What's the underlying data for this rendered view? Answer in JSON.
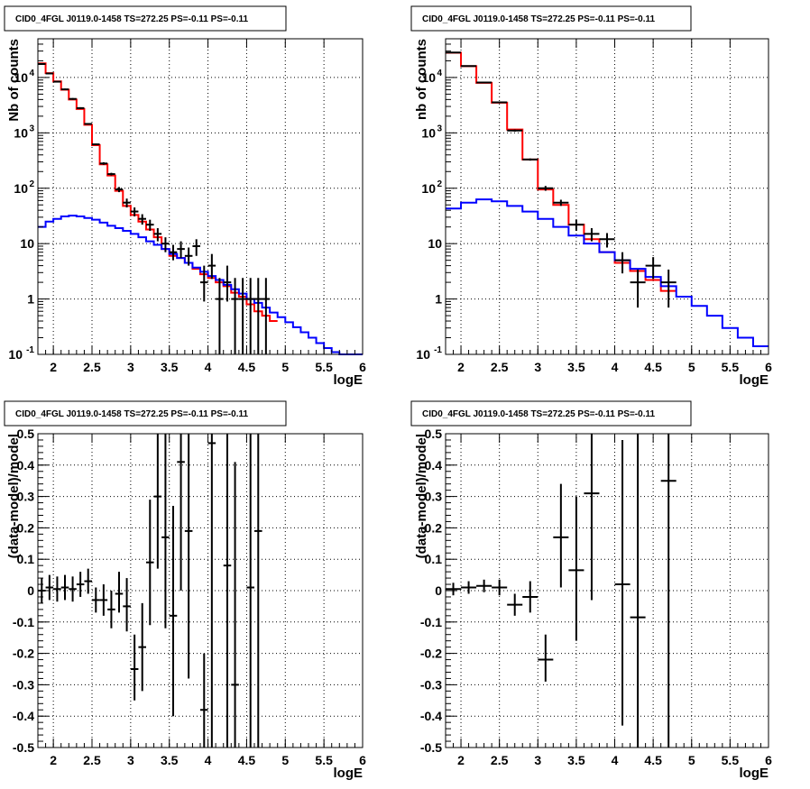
{
  "chart_data": [
    {
      "type": "histogram-log",
      "title": "CID0_4FGL J0119.0-1458 TS=272.25 PS=-0.11 PS=-0.11",
      "xlabel": "logE",
      "ylabel": "Nb of counts",
      "xlim": [
        1.8,
        6.0
      ],
      "ylim": [
        0.1,
        50000
      ],
      "yscale": "log",
      "grid": true,
      "x_ticks": [
        2,
        2.5,
        3,
        3.5,
        4,
        4.5,
        5,
        5.5,
        6
      ],
      "x_tick_labels": [
        "2",
        "2.5",
        "3",
        "3.5",
        "4",
        "4.5",
        "5",
        "5.5",
        "6"
      ],
      "y_ticks": [
        0.1,
        1,
        10,
        100,
        1000,
        10000
      ],
      "y_tick_labels": [
        [
          "10",
          "-1"
        ],
        [
          "1",
          ""
        ],
        [
          "10",
          ""
        ],
        [
          "10",
          "2"
        ],
        [
          "10",
          "3"
        ],
        [
          "10",
          "4"
        ]
      ],
      "series": [
        {
          "color": "#ff0000",
          "style": "step",
          "bin_width": 0.1,
          "x": [
            1.8,
            1.9,
            2.0,
            2.1,
            2.2,
            2.3,
            2.4,
            2.5,
            2.6,
            2.7,
            2.8,
            2.9,
            3.0,
            3.1,
            3.2,
            3.3,
            3.4,
            3.5,
            3.6,
            3.7,
            3.8,
            3.9,
            4.0,
            4.1,
            4.2,
            4.3,
            4.4,
            4.5,
            4.6,
            4.7,
            4.8
          ],
          "values": [
            18000,
            12000,
            8500,
            6000,
            4000,
            2700,
            1400,
            600,
            270,
            170,
            90,
            48,
            33,
            25,
            18,
            13,
            8,
            6,
            5.5,
            4.5,
            3.5,
            2.8,
            2.4,
            2.0,
            1.7,
            1.3,
            1.1,
            0.8,
            0.6,
            0.5,
            0.4
          ]
        },
        {
          "color": "#0000ff",
          "style": "step",
          "bin_width": 0.1,
          "x": [
            1.8,
            1.9,
            2.0,
            2.1,
            2.2,
            2.3,
            2.4,
            2.5,
            2.6,
            2.7,
            2.8,
            2.9,
            3.0,
            3.1,
            3.2,
            3.3,
            3.4,
            3.5,
            3.6,
            3.7,
            3.8,
            3.9,
            4.0,
            4.1,
            4.2,
            4.3,
            4.4,
            4.5,
            4.6,
            4.7,
            4.8,
            4.9,
            5.0,
            5.1,
            5.2,
            5.3,
            5.4,
            5.5,
            5.6,
            5.7,
            5.8,
            5.9
          ],
          "values": [
            20,
            25,
            28,
            31,
            32,
            31,
            29,
            27,
            24,
            21,
            19,
            17,
            15,
            13,
            11,
            9.5,
            8,
            6.5,
            5.5,
            4.5,
            3.7,
            3.1,
            2.6,
            2.2,
            1.8,
            1.5,
            1.25,
            1.0,
            0.85,
            0.7,
            0.57,
            0.47,
            0.38,
            0.31,
            0.25,
            0.2,
            0.16,
            0.13,
            0.11,
            0.1,
            0.1,
            0.1
          ]
        }
      ],
      "points": {
        "color": "#000000",
        "xerr": 0.05,
        "x": [
          1.85,
          1.95,
          2.05,
          2.15,
          2.25,
          2.35,
          2.45,
          2.55,
          2.65,
          2.75,
          2.85,
          2.95,
          3.05,
          3.15,
          3.25,
          3.35,
          3.45,
          3.55,
          3.65,
          3.75,
          3.85,
          3.95,
          4.05,
          4.15,
          4.25,
          4.35,
          4.45,
          4.55,
          4.65,
          4.75
        ],
        "y": [
          17500,
          11800,
          8400,
          6100,
          4100,
          2800,
          1450,
          620,
          280,
          180,
          95,
          55,
          38,
          28,
          22,
          15,
          10,
          7,
          8,
          6,
          9,
          2,
          4,
          1,
          2,
          1,
          1,
          1,
          1,
          1
        ],
        "ylow": [
          17300,
          11600,
          8200,
          5900,
          3950,
          2700,
          1400,
          600,
          265,
          170,
          85,
          45,
          31,
          22,
          17,
          11,
          7,
          5,
          5.5,
          4,
          6,
          0.9,
          2.3,
          0.1,
          0.9,
          0.1,
          0.1,
          0.1,
          0.1,
          0.1
        ],
        "yhigh": [
          17700,
          12000,
          8600,
          6300,
          4250,
          2900,
          1500,
          640,
          295,
          190,
          105,
          65,
          45,
          34,
          27,
          19,
          13,
          9.5,
          11,
          8.5,
          12,
          4,
          6.5,
          2.4,
          4,
          2.4,
          2.4,
          2.4,
          2.4,
          2.4
        ]
      }
    },
    {
      "type": "histogram-log",
      "title": "CID0_4FGL J0119.0-1458 TS=272.25 PS=-0.11 PS=-0.11",
      "xlabel": "logE",
      "ylabel": "nb of counts",
      "xlim": [
        1.8,
        6.0
      ],
      "ylim": [
        0.1,
        50000
      ],
      "yscale": "log",
      "grid": true,
      "x_ticks": [
        2,
        2.5,
        3,
        3.5,
        4,
        4.5,
        5,
        5.5,
        6
      ],
      "x_tick_labels": [
        "2",
        "2.5",
        "3",
        "3.5",
        "4",
        "4.5",
        "5",
        "5.5",
        "6"
      ],
      "y_ticks": [
        0.1,
        1,
        10,
        100,
        1000,
        10000
      ],
      "y_tick_labels": [
        [
          "10",
          "-1"
        ],
        [
          "1",
          ""
        ],
        [
          "10",
          ""
        ],
        [
          "10",
          "2"
        ],
        [
          "10",
          "3"
        ],
        [
          "10",
          "4"
        ]
      ],
      "series": [
        {
          "color": "#ff0000",
          "style": "step",
          "bin_width": 0.2,
          "x": [
            1.8,
            2.0,
            2.2,
            2.4,
            2.6,
            2.8,
            3.0,
            3.2,
            3.4,
            3.6,
            3.8,
            4.0,
            4.2,
            4.4,
            4.6
          ],
          "values": [
            28000,
            16000,
            8000,
            3500,
            1150,
            330,
            95,
            50,
            22,
            12,
            7,
            4.5,
            3.2,
            2.2,
            1.4
          ]
        },
        {
          "color": "#0000ff",
          "style": "step",
          "bin_width": 0.2,
          "x": [
            1.8,
            2.0,
            2.2,
            2.4,
            2.6,
            2.8,
            3.0,
            3.2,
            3.4,
            3.6,
            3.8,
            4.0,
            4.2,
            4.4,
            4.6,
            4.8,
            5.0,
            5.2,
            5.4,
            5.6,
            5.8
          ],
          "values": [
            43,
            55,
            63,
            58,
            48,
            38,
            28,
            20,
            14,
            10,
            7,
            5,
            3.5,
            2.5,
            1.7,
            1.1,
            0.75,
            0.5,
            0.3,
            0.2,
            0.14
          ]
        }
      ],
      "points": {
        "color": "#000000",
        "xerr": 0.1,
        "x": [
          1.9,
          2.1,
          2.3,
          2.5,
          2.7,
          2.9,
          3.1,
          3.3,
          3.5,
          3.7,
          3.9,
          4.1,
          4.3,
          4.5,
          4.7
        ],
        "y": [
          28200,
          16100,
          8100,
          3550,
          1100,
          330,
          100,
          55,
          22,
          15,
          12,
          5,
          2,
          4,
          2
        ],
        "ylow": [
          28000,
          15900,
          7900,
          3450,
          1050,
          315,
          90,
          48,
          17,
          11,
          8.5,
          2.9,
          0.7,
          2.3,
          0.7
        ],
        "yhigh": [
          28400,
          16300,
          8300,
          3650,
          1150,
          345,
          110,
          62,
          27,
          19,
          15.5,
          7,
          3.4,
          5.7,
          3.4
        ]
      }
    },
    {
      "type": "histogram-residual",
      "title": "CID0_4FGL J0119.0-1458 TS=272.25 PS=-0.11 PS=-0.11",
      "xlabel": "logE",
      "ylabel": "(data-model)/model",
      "xlim": [
        1.8,
        6.0
      ],
      "ylim": [
        -0.5,
        0.5
      ],
      "yscale": "linear",
      "grid": true,
      "x_ticks": [
        2,
        2.5,
        3,
        3.5,
        4,
        4.5,
        5,
        5.5,
        6
      ],
      "x_tick_labels": [
        "2",
        "2.5",
        "3",
        "3.5",
        "4",
        "4.5",
        "5",
        "5.5",
        "6"
      ],
      "y_ticks": [
        -0.5,
        -0.4,
        -0.3,
        -0.2,
        -0.1,
        0,
        0.1,
        0.2,
        0.3,
        0.4,
        0.5
      ],
      "y_tick_labels": [
        "-0.5",
        "-0.4",
        "-0.3",
        "-0.2",
        "-0.1",
        "0",
        "0.1",
        "0.2",
        "0.3",
        "0.4",
        "0.5"
      ],
      "points": {
        "color": "#000000",
        "xerr": 0.05,
        "x": [
          1.85,
          1.95,
          2.05,
          2.15,
          2.25,
          2.35,
          2.45,
          2.55,
          2.65,
          2.75,
          2.85,
          2.95,
          3.05,
          3.15,
          3.25,
          3.35,
          3.45,
          3.55,
          3.65,
          3.75,
          3.95,
          4.05,
          4.25,
          4.35,
          4.55,
          4.65
        ],
        "y": [
          0.0,
          0.01,
          0.005,
          0.01,
          0.005,
          0.02,
          0.03,
          -0.03,
          -0.03,
          -0.06,
          -0.01,
          -0.05,
          -0.25,
          -0.18,
          0.09,
          0.3,
          0.17,
          -0.08,
          0.41,
          0.19,
          -0.38,
          0.47,
          0.08,
          -0.3,
          0.01,
          0.19
        ],
        "ylow": [
          -0.04,
          -0.03,
          -0.035,
          -0.03,
          -0.035,
          -0.02,
          -0.01,
          -0.07,
          -0.08,
          -0.12,
          -0.07,
          -0.13,
          -0.35,
          -0.32,
          -0.11,
          0.07,
          -0.12,
          -0.4,
          0.0,
          -0.28,
          -0.5,
          -0.5,
          -0.5,
          -0.5,
          -0.5,
          -0.5
        ],
        "yhigh": [
          0.04,
          0.05,
          0.045,
          0.05,
          0.045,
          0.06,
          0.07,
          0.01,
          0.02,
          0.0,
          0.06,
          0.04,
          -0.14,
          -0.04,
          0.29,
          0.5,
          0.5,
          0.27,
          0.5,
          0.5,
          -0.2,
          0.5,
          0.5,
          0.41,
          0.5,
          0.5
        ]
      }
    },
    {
      "type": "histogram-residual",
      "title": "CID0_4FGL J0119.0-1458 TS=272.25 PS=-0.11 PS=-0.11",
      "xlabel": "logE",
      "ylabel": "(data-model)/model",
      "xlim": [
        1.8,
        6.0
      ],
      "ylim": [
        -0.5,
        0.5
      ],
      "yscale": "linear",
      "grid": true,
      "x_ticks": [
        2,
        2.5,
        3,
        3.5,
        4,
        4.5,
        5,
        5.5,
        6
      ],
      "x_tick_labels": [
        "2",
        "2.5",
        "3",
        "3.5",
        "4",
        "4.5",
        "5",
        "5.5",
        "6"
      ],
      "y_ticks": [
        -0.5,
        -0.4,
        -0.3,
        -0.2,
        -0.1,
        0,
        0.1,
        0.2,
        0.3,
        0.4,
        0.5
      ],
      "y_tick_labels": [
        "-0.5",
        "-0.4",
        "-0.3",
        "-0.2",
        "-0.1",
        "0",
        "0.1",
        "0.2",
        "0.3",
        "0.4",
        "0.5"
      ],
      "points": {
        "color": "#000000",
        "xerr": 0.1,
        "x": [
          1.9,
          2.1,
          2.3,
          2.5,
          2.7,
          2.9,
          3.1,
          3.3,
          3.5,
          3.7,
          4.1,
          4.3,
          4.7
        ],
        "y": [
          0.005,
          0.01,
          0.015,
          0.01,
          -0.045,
          -0.02,
          -0.22,
          0.17,
          0.065,
          0.31,
          0.02,
          -0.085,
          0.35
        ],
        "ylow": [
          -0.015,
          -0.01,
          -0.005,
          -0.015,
          -0.08,
          -0.07,
          -0.29,
          0.01,
          -0.16,
          -0.03,
          -0.43,
          -0.5,
          -0.5
        ],
        "yhigh": [
          0.025,
          0.03,
          0.035,
          0.035,
          -0.01,
          0.03,
          -0.14,
          0.34,
          0.3,
          0.5,
          0.48,
          0.5,
          0.5
        ]
      }
    }
  ]
}
